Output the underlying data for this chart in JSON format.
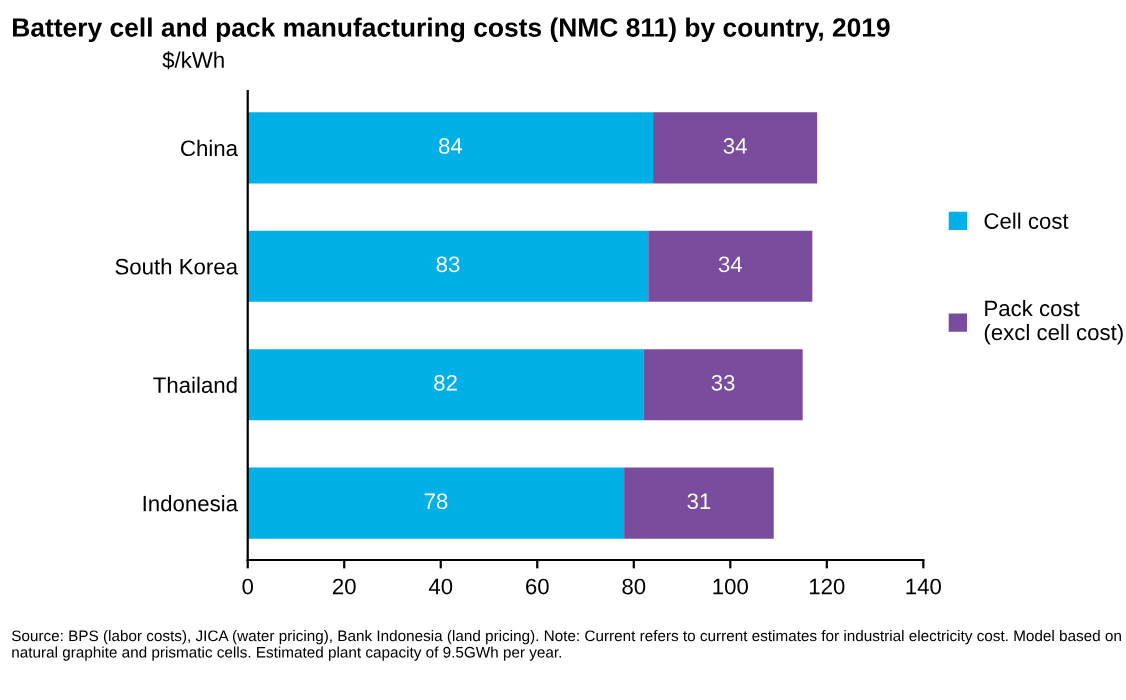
{
  "chart_data": {
    "type": "bar",
    "orientation": "horizontal",
    "stacked": true,
    "title": "Battery cell and pack manufacturing costs (NMC 811) by country, 2019",
    "ylabel": "$/kWh",
    "categories": [
      "China",
      "South Korea",
      "Thailand",
      "Indonesia"
    ],
    "series": [
      {
        "name": "Cell cost",
        "color": "#00b0e6",
        "values": [
          84,
          83,
          82,
          78
        ]
      },
      {
        "name": "Pack cost\n(excl cell cost)",
        "color": "#7a4c9e",
        "values": [
          34,
          34,
          33,
          31
        ]
      }
    ],
    "xlim": [
      0,
      140
    ],
    "xticks": [
      0,
      20,
      40,
      60,
      80,
      100,
      120,
      140
    ],
    "data_labels": true,
    "grid": false,
    "legend": "right",
    "annotations": [
      "Source: BPS (labor costs), JICA (water pricing), Bank Indonesia (land pricing). Note: Current refers to current estimates for industrial electricity cost. Model based on natural graphite and prismatic cells. Estimated plant capacity of 9.5GWh per year."
    ]
  }
}
